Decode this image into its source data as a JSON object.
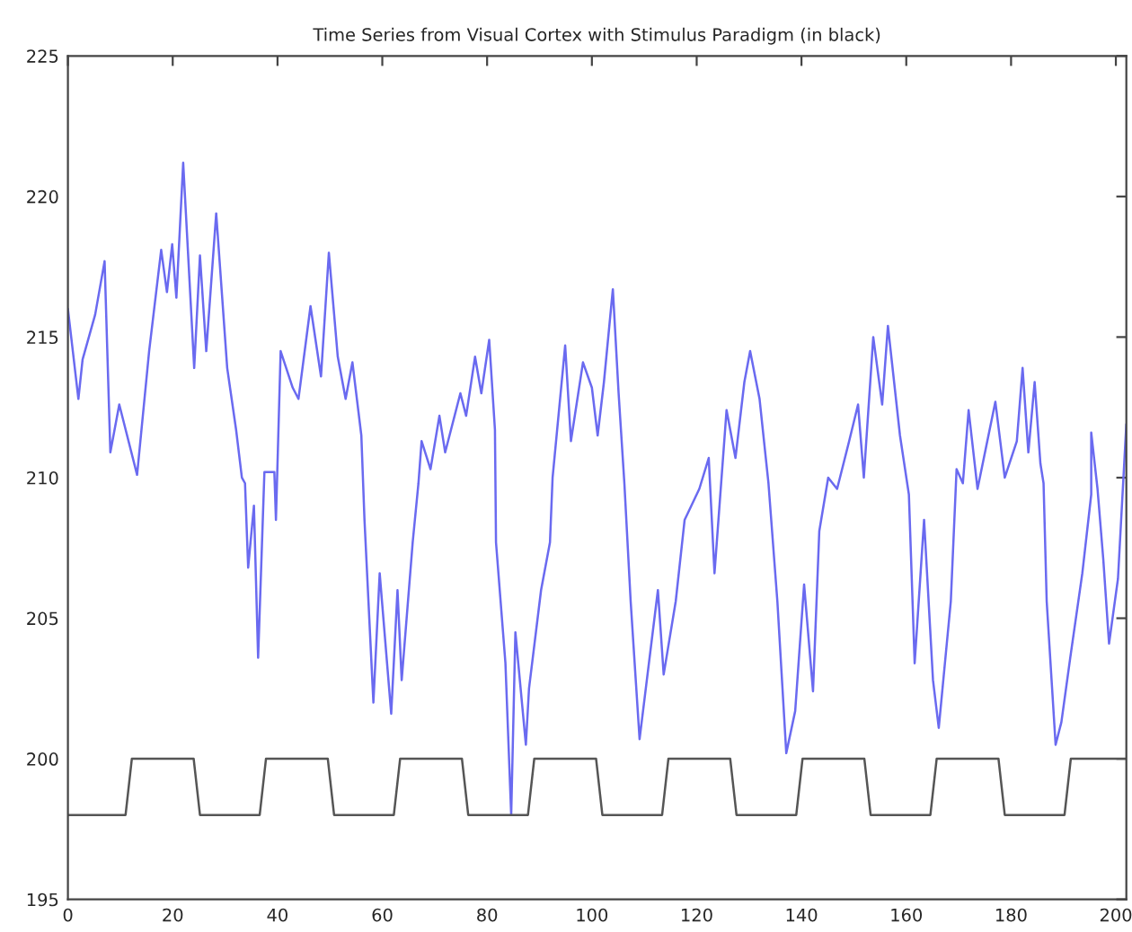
{
  "chart_data": {
    "type": "line",
    "title": "Time Series from Visual Cortex with Stimulus Paradigm (in black)",
    "xlim": [
      0,
      202
    ],
    "xticks": [
      0,
      20,
      40,
      60,
      80,
      100,
      120,
      140,
      160,
      180,
      200
    ],
    "ylim": [
      195,
      225
    ],
    "yticks": [
      195,
      200,
      205,
      210,
      215,
      220,
      225
    ],
    "grid": false,
    "legend": false,
    "series": [
      {
        "color": "#6a6af0",
        "x": [
          0,
          2,
          2.8,
          5.2,
          7,
          8.1,
          9.8,
          13.2,
          15.5,
          17.8,
          18.9,
          19.9,
          20.7,
          22,
          24.1,
          25.2,
          26.4,
          28.3,
          30.4,
          32.1,
          33.2,
          33.8,
          34.4,
          35.5,
          36.3,
          37.5,
          39.4,
          39.7,
          40.6,
          42.9,
          44,
          46.3,
          48.3,
          49.8,
          51.5,
          53,
          54.3,
          56,
          56.6,
          58.3,
          59.5,
          61.7,
          62.9,
          63.7,
          65.8,
          66.9,
          67.5,
          69.2,
          70.9,
          72,
          74.9,
          76,
          77.7,
          78.9,
          80.4,
          81.5,
          81.7,
          83.5,
          84.6,
          85.4,
          87.4,
          88,
          90.3,
          92,
          92.5,
          94.9,
          96,
          98.3,
          100,
          101.1,
          102.3,
          104,
          105.1,
          106.2,
          107.4,
          109.1,
          112.6,
          113.7,
          116,
          117.7,
          120.5,
          122.3,
          123.4,
          125.7,
          127.4,
          129.1,
          130.2,
          132,
          133.7,
          135.4,
          137.1,
          138.8,
          140.5,
          142.2,
          143.4,
          145.1,
          146.8,
          149.1,
          150.8,
          151.9,
          153.7,
          155.4,
          156.5,
          158.8,
          160.5,
          161.6,
          163.4,
          165.1,
          166.2,
          168.5,
          169.6,
          170.8,
          171.9,
          173.6,
          177,
          178.8,
          181.1,
          182.2,
          183.3,
          184.5,
          185.6,
          186.2,
          186.8,
          188.5,
          189.6,
          191.3,
          193.6,
          195.3,
          195.3,
          196.5,
          197.6,
          198.7,
          200.4,
          202
        ],
        "values": [
          216,
          212.8,
          214.2,
          215.8,
          217.7,
          210.9,
          212.6,
          210.1,
          214.5,
          218.1,
          216.6,
          218.3,
          216.4,
          221.2,
          213.9,
          217.9,
          214.5,
          219.4,
          213.9,
          211.7,
          210,
          209.8,
          206.8,
          209,
          203.6,
          210.2,
          210.2,
          208.5,
          214.5,
          213.2,
          212.8,
          216.1,
          213.6,
          218,
          214.3,
          212.8,
          214.1,
          211.5,
          208.5,
          202,
          206.6,
          201.6,
          206,
          202.8,
          207.7,
          209.8,
          211.3,
          210.3,
          212.2,
          210.9,
          213,
          212.2,
          214.3,
          213,
          214.9,
          211.7,
          207.7,
          203.4,
          198,
          204.5,
          200.5,
          202.5,
          206,
          207.7,
          210,
          214.7,
          211.3,
          214.1,
          213.2,
          211.5,
          213.4,
          216.7,
          213,
          209.8,
          205.6,
          200.7,
          206,
          203,
          205.6,
          208.5,
          209.6,
          210.7,
          206.6,
          212.4,
          210.7,
          213.4,
          214.5,
          212.8,
          209.8,
          205.6,
          200.2,
          201.7,
          206.2,
          202.4,
          208.1,
          210,
          209.6,
          211.3,
          212.6,
          210,
          215,
          212.6,
          215.4,
          211.5,
          209.4,
          203.4,
          208.5,
          202.8,
          201.1,
          205.6,
          210.3,
          209.8,
          212.4,
          209.6,
          212.7,
          210,
          211.3,
          213.9,
          210.9,
          213.4,
          210.5,
          209.8,
          205.6,
          200.5,
          201.3,
          203.6,
          206.6,
          209.4,
          211.6,
          209.6,
          207.1,
          204.1,
          206.4,
          211.9
        ]
      },
      {
        "color": "#555555",
        "x": [
          0,
          11,
          12.2,
          24,
          25.2,
          36.6,
          37.8,
          49.6,
          50.8,
          62.2,
          63.4,
          75.2,
          76.4,
          87.8,
          89,
          100.8,
          102,
          113.4,
          114.6,
          126.4,
          127.6,
          139,
          140.2,
          152,
          153.2,
          164.6,
          165.8,
          177.6,
          178.8,
          190.2,
          191.4,
          202
        ],
        "values": [
          198,
          198,
          200,
          200,
          198,
          198,
          200,
          200,
          198,
          198,
          200,
          200,
          198,
          198,
          200,
          200,
          198,
          198,
          200,
          200,
          198,
          198,
          200,
          200,
          198,
          198,
          200,
          200,
          198,
          198,
          200,
          200
        ]
      }
    ]
  }
}
